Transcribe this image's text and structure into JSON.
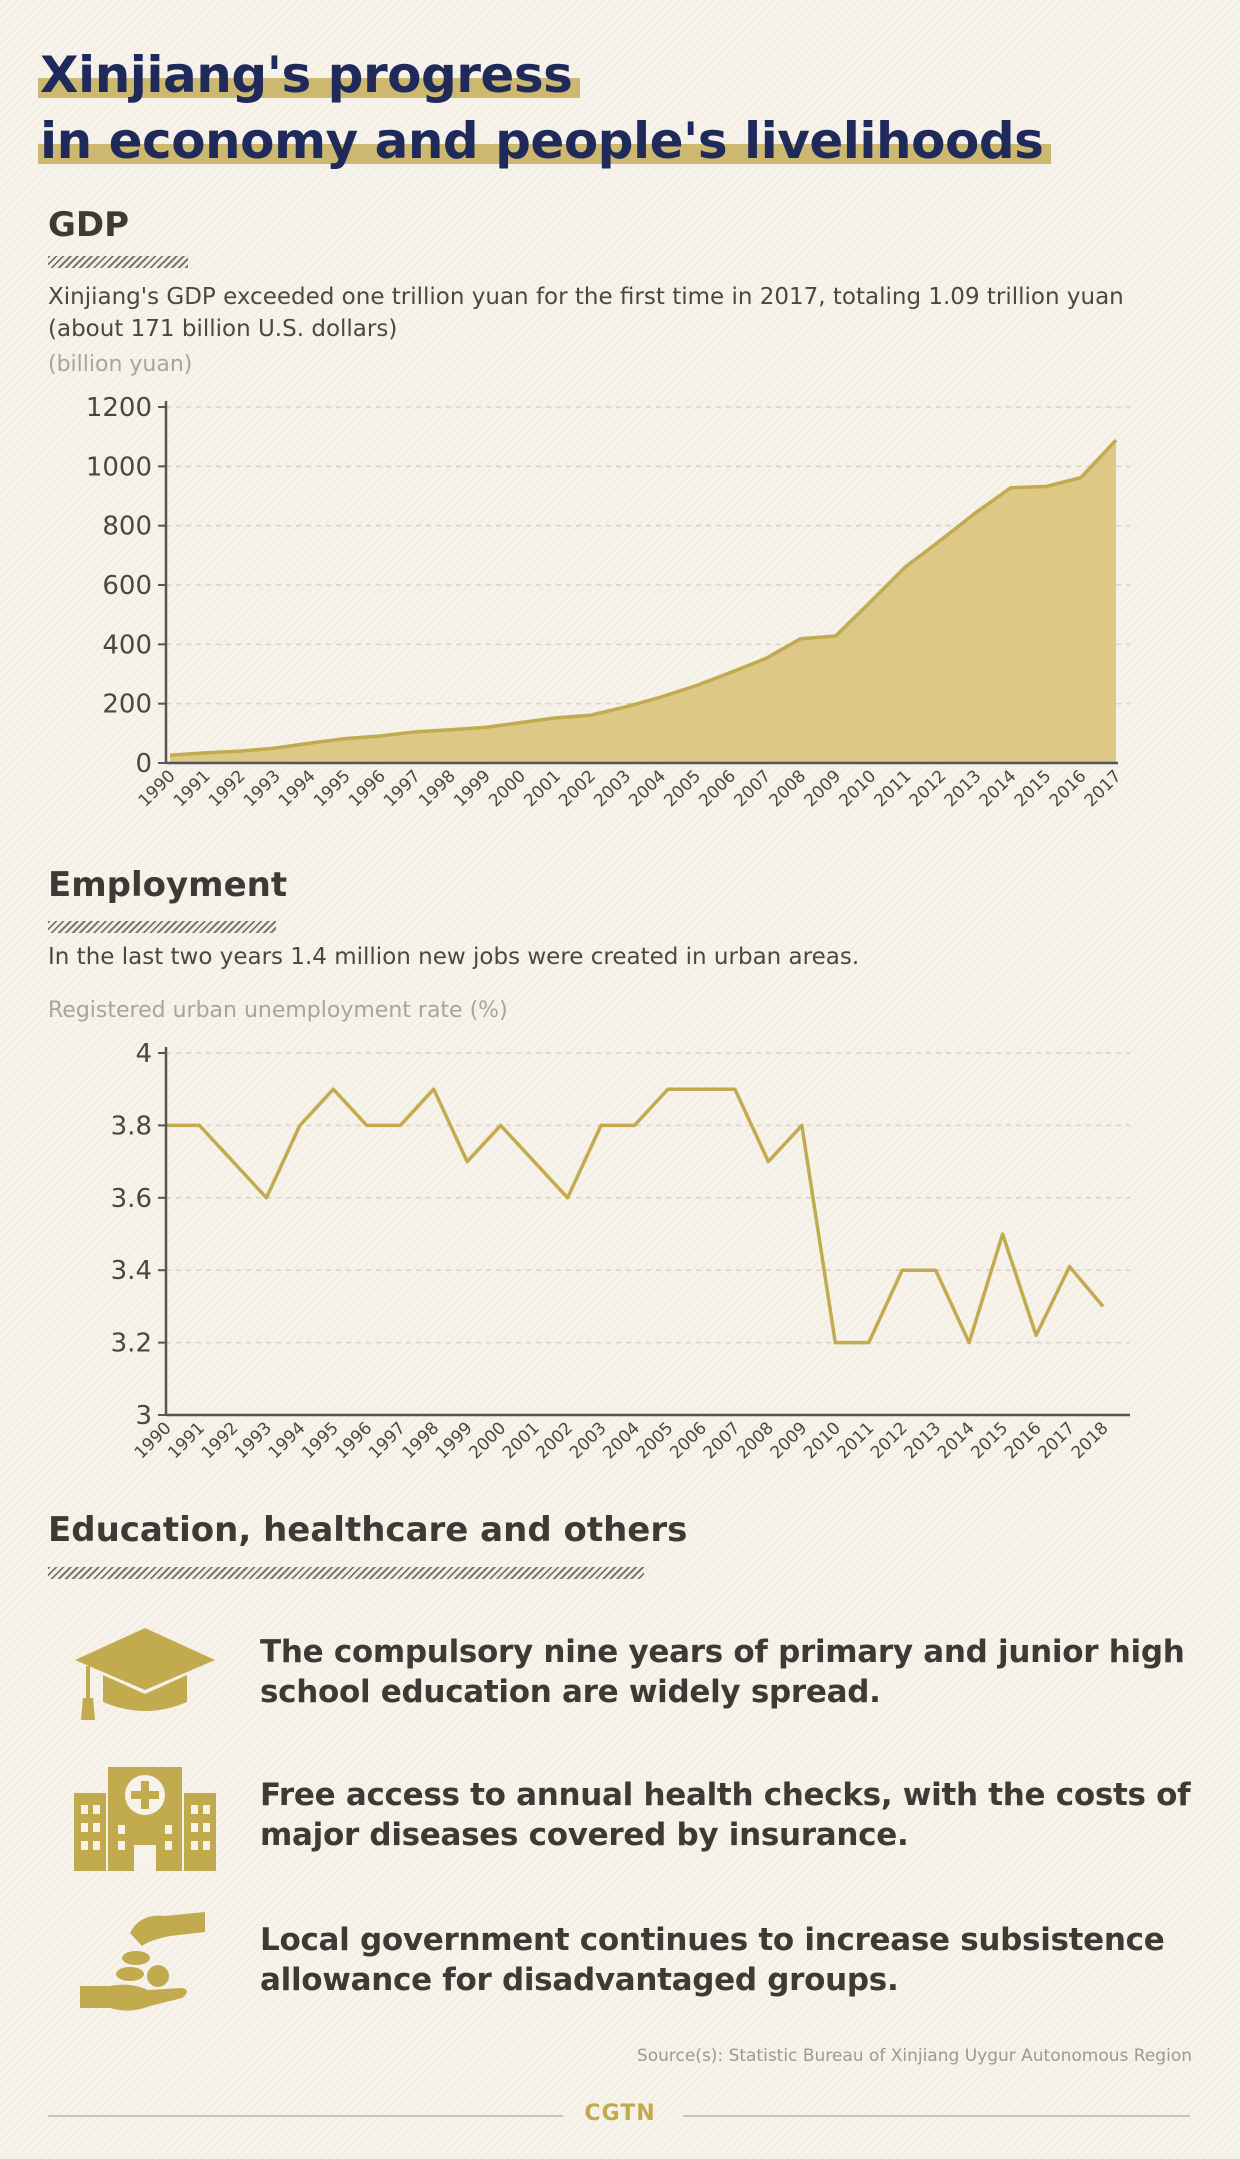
{
  "title": {
    "line1": "Xinjiang's progress",
    "line2": "in economy and people's livelihoods"
  },
  "colors": {
    "accent": "#c2aa4e",
    "area_fill": "#ddc985",
    "title": "#1f2a5a",
    "text": "#3d3a36"
  },
  "gdp": {
    "heading": "GDP",
    "description": "Xinjiang's GDP exceeded one trillion yuan for the first time in 2017, totaling 1.09 trillion yuan (about 171 billion U.S. dollars)",
    "unit": "(billion yuan)"
  },
  "employment": {
    "heading": "Employment",
    "description": "In the last two years 1.4 million new jobs were created in urban areas.",
    "unit": "Registered urban unemployment rate (%)"
  },
  "others": {
    "heading": "Education, healthcare and others",
    "items": [
      {
        "icon": "graduation-cap-icon",
        "text": "The compulsory nine years of primary and junior high school education are widely spread."
      },
      {
        "icon": "hospital-icon",
        "text": "Free access to annual health checks, with the costs of major diseases covered by insurance."
      },
      {
        "icon": "hand-coins-icon",
        "text": "Local government continues to increase subsistence allowance for disadvantaged groups."
      }
    ]
  },
  "footer": {
    "source": "Source(s): Statistic Bureau of Xinjiang Uygur Autonomous Region",
    "brand": "CGTN"
  },
  "chart_data": [
    {
      "type": "area",
      "title": "GDP",
      "ylabel": "(billion yuan)",
      "ylim": [
        0,
        1200
      ],
      "yticks": [
        0,
        200,
        400,
        600,
        800,
        1000,
        1200
      ],
      "x": [
        "1990",
        "1991",
        "1992",
        "1993",
        "1994",
        "1995",
        "1996",
        "1997",
        "1998",
        "1999",
        "2000",
        "2001",
        "2002",
        "2003",
        "2004",
        "2005",
        "2006",
        "2007",
        "2008",
        "2009",
        "2010",
        "2011",
        "2012",
        "2013",
        "2014",
        "2015",
        "2016",
        "2017"
      ],
      "values": [
        26,
        34,
        40,
        50,
        67,
        82,
        91,
        105,
        112,
        120,
        136,
        152,
        161,
        189,
        222,
        260,
        305,
        352,
        419,
        428,
        544,
        662,
        751,
        844,
        928,
        932,
        962,
        1088
      ]
    },
    {
      "type": "line",
      "title": "Employment",
      "ylabel": "Registered urban unemployment rate (%)",
      "ylim": [
        3,
        4
      ],
      "yticks": [
        3,
        3.2,
        3.4,
        3.6,
        3.8,
        4
      ],
      "x": [
        "1990",
        "1991",
        "1992",
        "1993",
        "1994",
        "1995",
        "1996",
        "1997",
        "1998",
        "1999",
        "2000",
        "2001",
        "2002",
        "2003",
        "2004",
        "2005",
        "2006",
        "2007",
        "2008",
        "2009",
        "2010",
        "2011",
        "2012",
        "2013",
        "2014",
        "2015",
        "2016",
        "2017",
        "2018"
      ],
      "values": [
        3.8,
        3.8,
        3.7,
        3.6,
        3.8,
        3.9,
        3.8,
        3.8,
        3.9,
        3.7,
        3.8,
        3.7,
        3.6,
        3.8,
        3.8,
        3.9,
        3.9,
        3.9,
        3.7,
        3.8,
        3.2,
        3.2,
        3.4,
        3.4,
        3.2,
        3.5,
        3.22,
        3.41,
        3.3
      ]
    }
  ]
}
